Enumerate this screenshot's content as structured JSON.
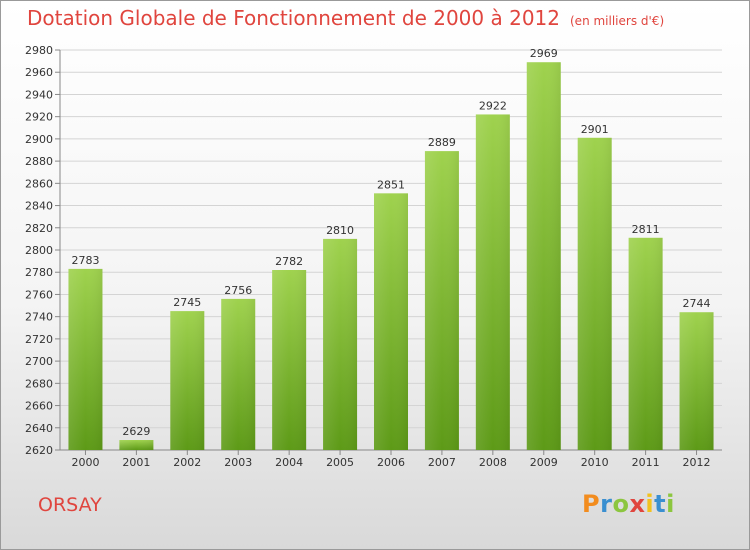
{
  "header": {
    "title": "Dotation Globale de Fonctionnement de 2000 à 2012",
    "unit": "(en milliers d'€)"
  },
  "footer": {
    "commune": "ORSAY",
    "logo_text": "Proxiti",
    "logo_letters": [
      {
        "char": "P",
        "color": "#f28c1e"
      },
      {
        "char": "r",
        "color": "#3a8fd0"
      },
      {
        "char": "o",
        "color": "#8cc63f"
      },
      {
        "char": "x",
        "color": "#e0453e"
      },
      {
        "char": "i",
        "color": "#f2c21e"
      },
      {
        "char": "t",
        "color": "#3a8fd0"
      },
      {
        "char": "i",
        "color": "#8cc63f"
      }
    ]
  },
  "colors": {
    "accent": "#e0453e",
    "bar_top": "#9fd24e",
    "bar_bottom": "#5d9a17"
  },
  "chart_data": {
    "type": "bar",
    "categories": [
      "2000",
      "2001",
      "2002",
      "2003",
      "2004",
      "2005",
      "2006",
      "2007",
      "2008",
      "2009",
      "2010",
      "2011",
      "2012"
    ],
    "values": [
      2783,
      2629,
      2745,
      2756,
      2782,
      2810,
      2851,
      2889,
      2922,
      2969,
      2901,
      2811,
      2744
    ],
    "ylim": [
      2620,
      2980
    ],
    "yticks": [
      2620,
      2640,
      2660,
      2680,
      2700,
      2720,
      2740,
      2760,
      2780,
      2800,
      2820,
      2840,
      2860,
      2880,
      2900,
      2920,
      2940,
      2960,
      2980
    ],
    "grid": true,
    "xlabel": "",
    "ylabel": ""
  }
}
